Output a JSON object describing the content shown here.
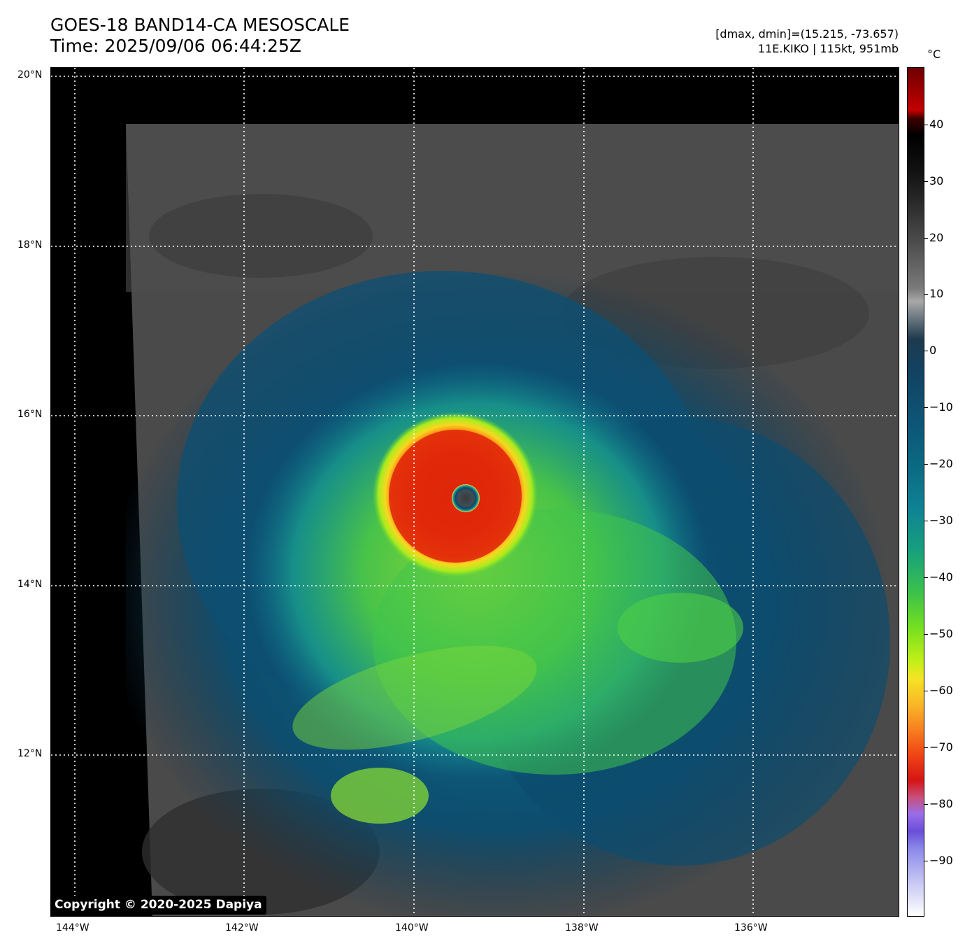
{
  "header": {
    "title_line1": "GOES-18 BAND14-CA MESOSCALE",
    "title_line2": "Time: 2025/09/06 06:44:25Z",
    "info_line1": "[dmax, dmin]=(15.215, -73.657)",
    "info_line2": "11E.KIKO | 115kt, 951mb"
  },
  "map": {
    "lat_labels": [
      "20°N",
      "18°N",
      "16°N",
      "14°N",
      "12°N"
    ],
    "lon_labels": [
      "144°W",
      "142°W",
      "140°W",
      "138°W",
      "136°W"
    ],
    "gridlines": "dotted white"
  },
  "colorbar": {
    "unit": "°C",
    "labels": [
      "40",
      "30",
      "20",
      "10",
      "0",
      "−10",
      "−20",
      "−30",
      "−40",
      "−50",
      "−60",
      "−70",
      "−80",
      "−90"
    ]
  },
  "copyright": "Copyright © 2020-2025 Dapiya"
}
